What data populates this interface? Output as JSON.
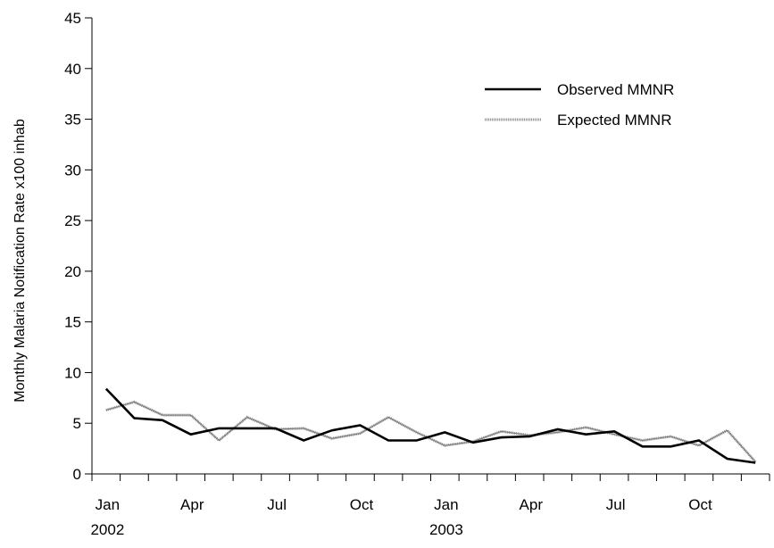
{
  "chart_data": {
    "type": "line",
    "title": "",
    "xlabel": "",
    "ylabel": "Monthly Malaria Notification Rate x100 inhab",
    "ylim": [
      0,
      45
    ],
    "y_ticks": [
      0,
      5,
      10,
      15,
      20,
      25,
      30,
      35,
      40,
      45
    ],
    "x_tick_labels": [
      {
        "month": "Jan",
        "year": "2002"
      },
      {
        "month": "Apr",
        "year": ""
      },
      {
        "month": "Jul",
        "year": ""
      },
      {
        "month": "Oct",
        "year": ""
      },
      {
        "month": "Jan",
        "year": "2003"
      },
      {
        "month": "Apr",
        "year": ""
      },
      {
        "month": "Jul",
        "year": ""
      },
      {
        "month": "Oct",
        "year": ""
      }
    ],
    "x": [
      "2002-01",
      "2002-02",
      "2002-03",
      "2002-04",
      "2002-05",
      "2002-06",
      "2002-07",
      "2002-08",
      "2002-09",
      "2002-10",
      "2002-11",
      "2002-12",
      "2003-01",
      "2003-02",
      "2003-03",
      "2003-04",
      "2003-05",
      "2003-06",
      "2003-07",
      "2003-08",
      "2003-09",
      "2003-10",
      "2003-11",
      "2003-12"
    ],
    "grid": false,
    "legend_position": "top-right",
    "series": [
      {
        "name": "Observed MMNR",
        "color": "#000000",
        "style": "solid-thick",
        "values": [
          8.4,
          5.5,
          5.3,
          3.9,
          4.5,
          4.5,
          4.5,
          3.3,
          4.3,
          4.8,
          3.3,
          3.3,
          4.1,
          3.1,
          3.6,
          3.7,
          4.4,
          3.9,
          4.2,
          2.7,
          2.7,
          3.3,
          1.5,
          1.1
        ]
      },
      {
        "name": "Expected MMNR",
        "color": "#9a9a9a",
        "style": "light-textured",
        "values": [
          6.3,
          7.1,
          5.8,
          5.8,
          3.3,
          5.6,
          4.4,
          4.5,
          3.5,
          4.0,
          5.6,
          4.1,
          2.8,
          3.2,
          4.2,
          3.8,
          4.1,
          4.6,
          3.9,
          3.3,
          3.7,
          2.8,
          4.3,
          1.2
        ]
      }
    ]
  }
}
